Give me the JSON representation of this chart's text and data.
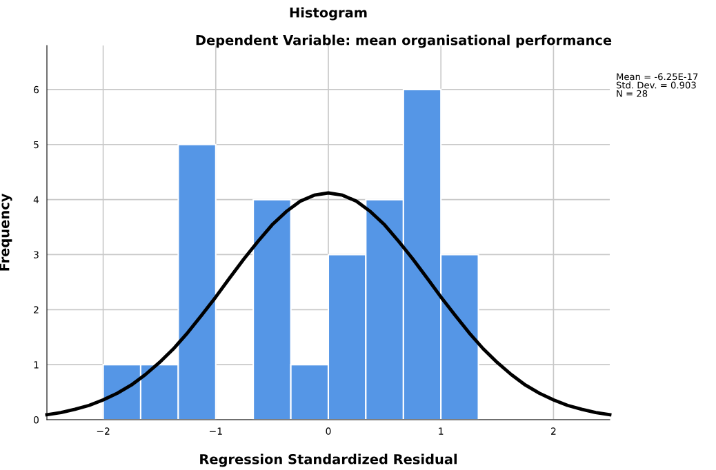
{
  "chart_data": {
    "type": "histogram",
    "title": "Histogram",
    "subtitle": "Dependent Variable: mean organisational performance",
    "xlabel": "Regression Standardized Residual",
    "ylabel": "Frequency",
    "bins": [
      -2,
      -1.667,
      -1.333,
      -1,
      -0.667,
      -0.333,
      0,
      0.333,
      0.667,
      1,
      1.333
    ],
    "values": [
      1,
      1,
      5,
      0,
      4,
      1,
      3,
      4,
      6,
      3
    ],
    "color": "#5596e6",
    "series": [
      {
        "type": "line",
        "color": "#000000",
        "x": [
          -2.5,
          -2.375,
          -2.25,
          -2.125,
          -2,
          -1.875,
          -1.75,
          -1.625,
          -1.5,
          -1.375,
          -1.25,
          -1.125,
          -1,
          -0.875,
          -0.75,
          -0.625,
          -0.5,
          -0.375,
          -0.25,
          -0.125,
          0,
          0.125,
          0.25,
          0.375,
          0.5,
          0.625,
          0.75,
          0.875,
          1,
          1.125,
          1.25,
          1.375,
          1.5,
          1.625,
          1.75,
          1.875,
          2,
          2.125,
          2.25,
          2.375,
          2.5
        ],
        "values": [
          0.09,
          0.13,
          0.19,
          0.26,
          0.36,
          0.48,
          0.63,
          0.82,
          1.04,
          1.29,
          1.58,
          1.9,
          2.23,
          2.58,
          2.92,
          3.24,
          3.54,
          3.78,
          3.97,
          4.08,
          4.12,
          4.08,
          3.97,
          3.78,
          3.54,
          3.24,
          2.92,
          2.58,
          2.23,
          1.9,
          1.58,
          1.29,
          1.04,
          0.82,
          0.63,
          0.48,
          0.36,
          0.26,
          0.19,
          0.13,
          0.09
        ]
      }
    ],
    "xlim": [
      -2.5,
      2.5
    ],
    "ylim": [
      0,
      6.8
    ],
    "xticks": [
      {
        "value": -2,
        "label": "−2"
      },
      {
        "value": -1,
        "label": "−1"
      },
      0,
      1,
      2
    ],
    "yticks": [
      0,
      1,
      2,
      3,
      4,
      5,
      6
    ],
    "grid": true,
    "annotations": [
      "Mean = -6.25E-17\nStd. Dev. = 0.903\nN = 28"
    ]
  }
}
